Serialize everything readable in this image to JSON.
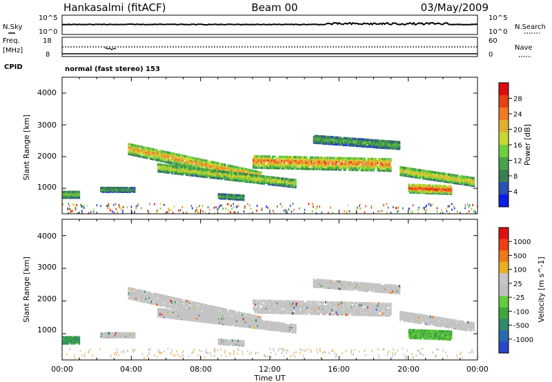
{
  "header": {
    "station": "Hankasalmi (fitACF)",
    "beam": "Beam 00",
    "date": "03/May/2009"
  },
  "panels": {
    "nsky_label": "N.Sky",
    "nsearch_label": "N.Search",
    "nsky_ticks": [
      "10^5",
      "10^0"
    ],
    "nsearch_ticks": [
      "10^5",
      "10^0"
    ],
    "freq_label": "Freq.",
    "freq_unit": "[MHz]",
    "freq_ticks": [
      "18",
      "8"
    ],
    "nave_label": "Nave",
    "nave_ticks": [
      "60",
      "0"
    ],
    "cpid_label": "CPID",
    "cpid_text": "normal (fast stereo) 153"
  },
  "colors": {
    "power_scale": [
      "#0a1ee6",
      "#2a4fb4",
      "#3a7f52",
      "#49a24e",
      "#6ecf3c",
      "#c8d832",
      "#e0b030",
      "#f07a20",
      "#e84010",
      "#dc0c0c"
    ],
    "velocity_scale": [
      "#2848c8",
      "#2a6ab0",
      "#2e8a6a",
      "#3fa63a",
      "#62cc3a",
      "#c0c0c0",
      "#c6c6c6",
      "#e8b020",
      "#f07818",
      "#ec4010",
      "#e01010"
    ],
    "ground_scatter": "#c4c4c4"
  },
  "chart_data": [
    {
      "type": "heatmap",
      "title": "",
      "xlabel": "",
      "ylabel": "Slant Range [km]",
      "xlim": [
        "00:00",
        "00:00"
      ],
      "ylim": [
        200,
        4500
      ],
      "x_ticks": [
        "00:00",
        "04:00",
        "08:00",
        "12:00",
        "16:00",
        "20:00",
        "00:00"
      ],
      "y_ticks": [
        "4000",
        "3000",
        "2000",
        "1000"
      ],
      "colorbar": {
        "label": "Power [dB]",
        "ticks": [
          "28",
          "24",
          "20",
          "16",
          "12",
          "8",
          "4"
        ],
        "range": [
          0,
          30
        ]
      },
      "grid": false
    },
    {
      "type": "heatmap",
      "title": "",
      "xlabel": "Time UT",
      "ylabel": "Slant Range [km]",
      "xlim": [
        "00:00",
        "00:00"
      ],
      "ylim": [
        200,
        4500
      ],
      "x_ticks": [
        "00:00",
        "04:00",
        "08:00",
        "12:00",
        "16:00",
        "20:00",
        "00:00"
      ],
      "y_ticks": [
        "4000",
        "3000",
        "2000",
        "1000"
      ],
      "colorbar": {
        "label": "Velocity [m s^-1]",
        "ticks": [
          "1000",
          "500",
          "100",
          "25",
          "-25",
          "-100",
          "-500",
          "-1000"
        ],
        "range": [
          -1200,
          1200
        ]
      },
      "grid": false
    }
  ]
}
